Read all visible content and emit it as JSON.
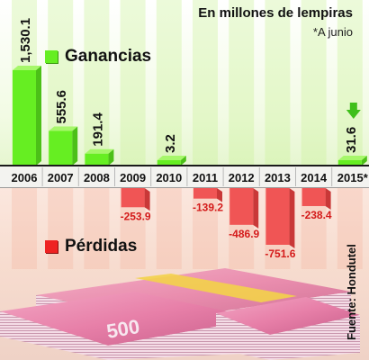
{
  "title": "En millones de lempiras",
  "note": "*A junio",
  "legend": {
    "gains": "Ganancias",
    "losses": "Pérdidas"
  },
  "source": "Fuente: Hondutel",
  "colors": {
    "gain": "#66ee22",
    "loss": "#f05555",
    "gain_stripe": "#c8f096",
    "loss_stripe": "#f4a890"
  },
  "chart_data": {
    "type": "bar",
    "categories": [
      "2006",
      "2007",
      "2008",
      "2009",
      "2010",
      "2011",
      "2012",
      "2013",
      "2014",
      "2015*"
    ],
    "values": [
      1530.1,
      555.6,
      191.4,
      -253.9,
      3.2,
      -139.2,
      -486.9,
      -751.6,
      -238.4,
      31.6
    ],
    "labels": [
      "1,530.1",
      "555.6",
      "191.4",
      "-253.9",
      "3.2",
      "-139.2",
      "-486.9",
      "-751.6",
      "-238.4",
      "31.6"
    ],
    "series": [
      {
        "name": "Ganancias",
        "values": [
          1530.1,
          555.6,
          191.4,
          null,
          3.2,
          null,
          null,
          null,
          null,
          31.6
        ]
      },
      {
        "name": "Pérdidas",
        "values": [
          null,
          null,
          null,
          -253.9,
          null,
          -139.2,
          -486.9,
          -751.6,
          -238.4,
          null
        ]
      }
    ],
    "title": "En millones de lempiras",
    "xlabel": "",
    "ylabel": "",
    "legend_position": "left",
    "grid": false
  }
}
